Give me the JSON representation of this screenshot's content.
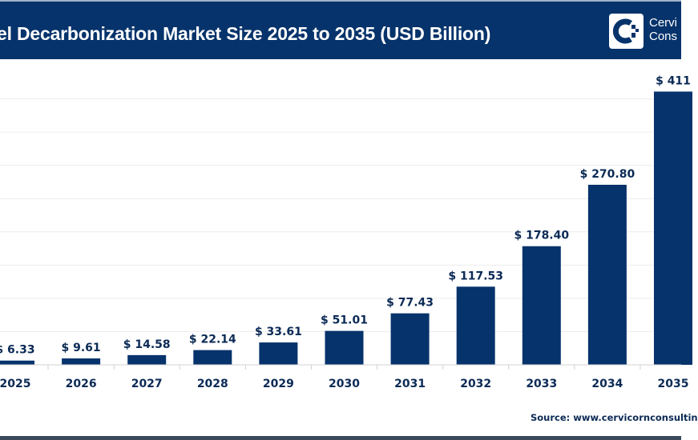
{
  "header": {
    "title": "el Decarbonization Market Size 2025 to 2035 (USD Billion)",
    "logo_line1": "Cervi",
    "logo_line2": "Cons"
  },
  "source": "Source: www.cervicornconsultin",
  "colors": {
    "header": "#06336b",
    "bar": "#06336b",
    "text": "#0b2a55"
  },
  "chart_data": {
    "type": "bar",
    "title": "el Decarbonization Market Size 2025 to 2035 (USD Billion)",
    "categories": [
      "2025",
      "2026",
      "2027",
      "2028",
      "2029",
      "2030",
      "2031",
      "2032",
      "2033",
      "2034",
      "2035"
    ],
    "values": [
      6.33,
      9.61,
      14.58,
      22.14,
      33.61,
      51.01,
      77.43,
      117.53,
      178.4,
      270.8,
      411
    ],
    "labels": [
      "$ 6.33",
      "$ 9.61",
      "$ 14.58",
      "$ 22.14",
      "$ 33.61",
      "$ 51.01",
      "$ 77.43",
      "$ 117.53",
      "$ 178.40",
      "$ 270.80",
      "$ 411"
    ],
    "ylim": [
      0,
      400
    ],
    "grid": true,
    "xlabel": "",
    "ylabel": ""
  }
}
